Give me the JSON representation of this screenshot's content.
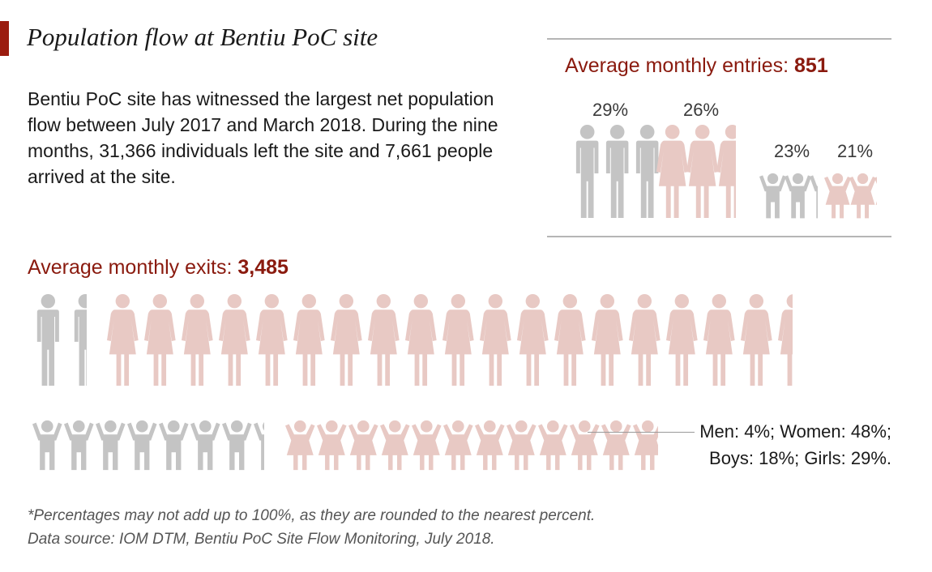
{
  "title": "Population flow at Bentiu PoC site",
  "intro": "Bentiu PoC site has witnessed the largest net population flow between July 2017 and March 2018.  During the nine months, 31,366 individuals left the site and 7,661 people arrived at the site.",
  "colors": {
    "accent": "#9b1c0f",
    "heading": "#8a1a0e",
    "male": "#c4c4c4",
    "female": "#e8c9c4",
    "rule": "#b5b5b5"
  },
  "icons": {
    "man": "man-icon",
    "woman": "woman-icon",
    "boy": "boy-icon",
    "girl": "girl-icon"
  },
  "entries": {
    "label": "Average monthly entries: ",
    "value": "851"
  },
  "exits": {
    "label": "Average monthly exits: ",
    "value": "3,485",
    "callout_line1": "Men: 4%; Women: 48%;",
    "callout_line2": "Boys: 18%; Girls: 29%."
  },
  "chart_data": [
    {
      "type": "pictogram",
      "title": "Average monthly entries: 851",
      "categories": [
        "Men",
        "Women",
        "Boys",
        "Girls"
      ],
      "values": [
        29,
        26,
        23,
        21
      ],
      "labels": [
        "29%",
        "26%",
        "23%",
        "21%"
      ],
      "unit": "%"
    },
    {
      "type": "pictogram",
      "title": "Average monthly exits: 3,485",
      "categories": [
        "Men",
        "Women",
        "Boys",
        "Girls"
      ],
      "values": [
        4,
        48,
        18,
        29
      ],
      "unit": "%"
    }
  ],
  "footnote": {
    "line1": "*Percentages may not add up to 100%, as they are rounded to the nearest percent.",
    "line2": "Data source: IOM DTM, Bentiu PoC Site Flow Monitoring, July 2018."
  }
}
